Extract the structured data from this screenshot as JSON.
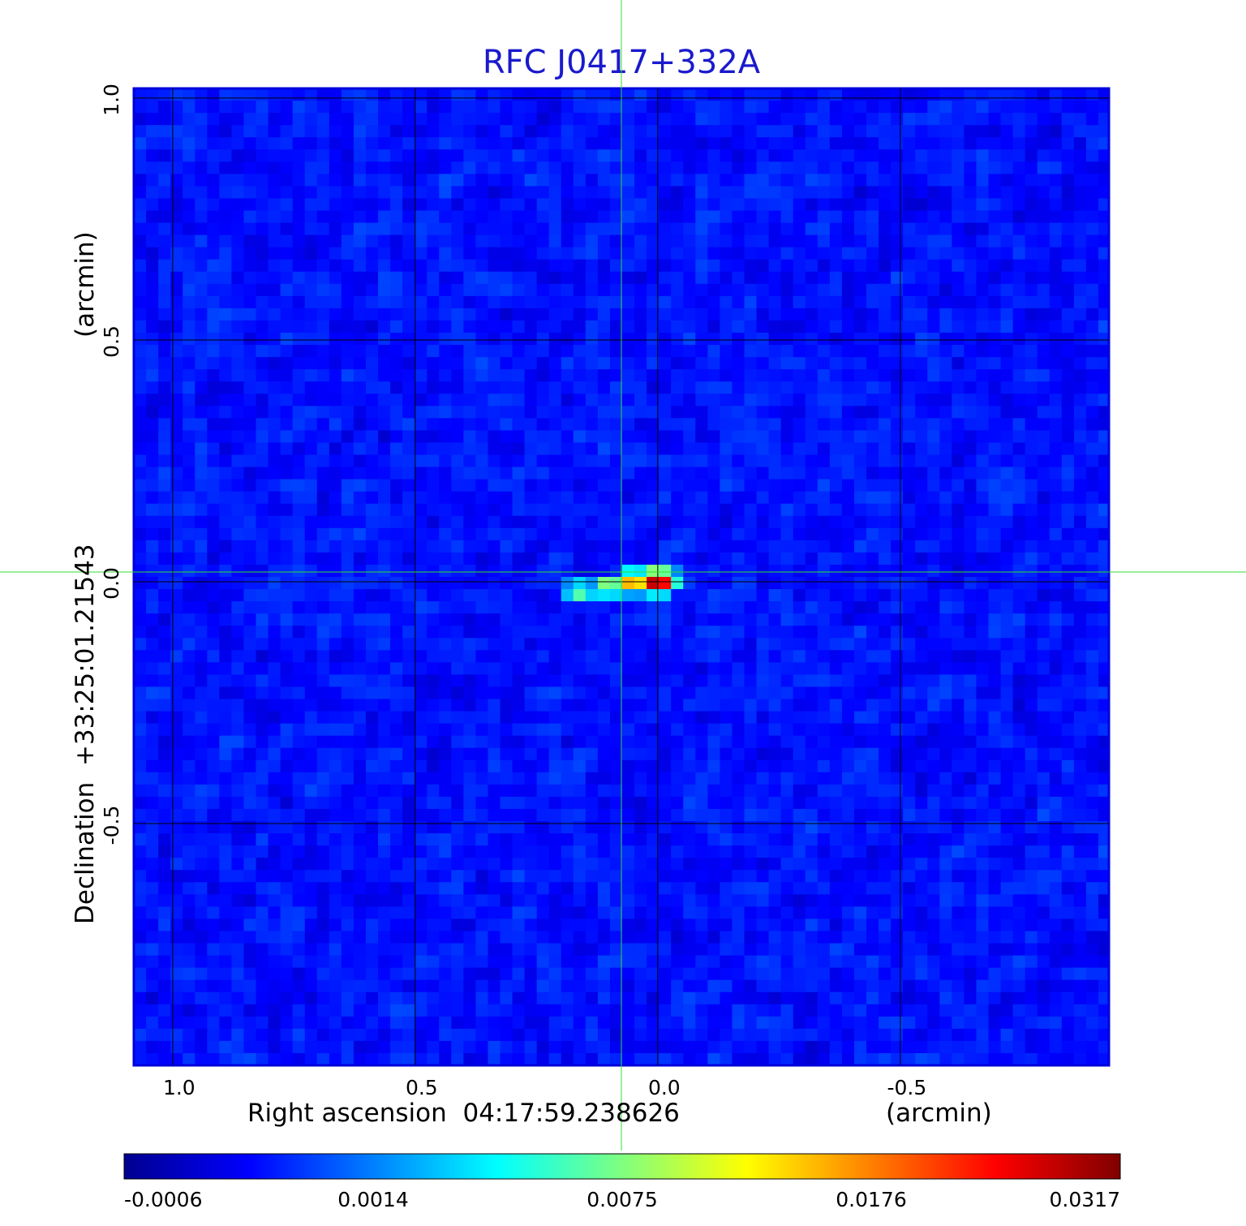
{
  "chart_data": {
    "type": "heatmap",
    "title": "RFC J0417+332A",
    "xlabel": "Right ascension  04:17:59.238626",
    "xunit": "(arcmin)",
    "ylabel": "Declination  +33:25:01.21543",
    "yunit": "(arcmin)",
    "x_ticks": [
      1.0,
      0.5,
      0.0,
      -0.5
    ],
    "x_tick_labels": [
      "1.0",
      "0.5",
      "0.0",
      "-0.5"
    ],
    "y_ticks": [
      1.0,
      0.5,
      0.0,
      -0.5
    ],
    "y_tick_labels": [
      "1.0",
      "0.5",
      "0.0",
      "-0.5"
    ],
    "xlim": [
      1.08,
      -0.93
    ],
    "ylim": [
      -1.0,
      1.02
    ],
    "grid": true,
    "crosshair": {
      "x": 0.075,
      "y": 0.02,
      "color": "#33dd33"
    },
    "colormap": "jet",
    "colorbar": {
      "tick_labels": [
        "-0.0006",
        "0.0014",
        "0.0075",
        "0.0176",
        "0.0317"
      ],
      "tick_values": [
        -0.0006,
        0.0014,
        0.0075,
        0.0176,
        0.0317
      ]
    },
    "background_level": 0.0004,
    "peak": {
      "x": 0.0,
      "y": 0.0,
      "value": 0.0317
    },
    "source_components": [
      {
        "x": 0.0,
        "y": 0.0,
        "value": 0.0317
      },
      {
        "x": 0.05,
        "y": 0.0,
        "value": 0.0176
      },
      {
        "x": 0.1,
        "y": -0.01,
        "value": 0.0098
      },
      {
        "x": 0.16,
        "y": -0.02,
        "value": 0.0075
      }
    ]
  }
}
